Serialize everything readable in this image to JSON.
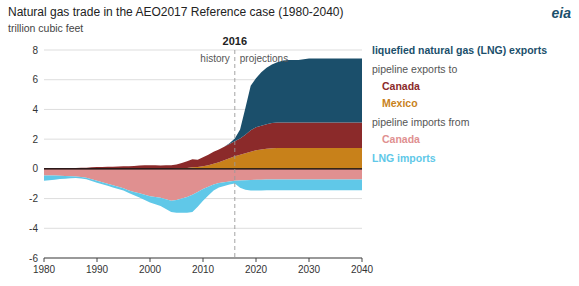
{
  "chart_data": {
    "type": "area",
    "stacked": true,
    "title": "Natural gas trade in the AEO2017 Reference case (1980-2040)",
    "y_label": "trillion cubic feet",
    "annotations": [
      "history",
      "projections",
      "pipeline exports to",
      "pipeline imports from",
      "eia"
    ],
    "divider": 2016,
    "xlim": [
      1980,
      2040
    ],
    "xticks": [
      1980,
      1990,
      2000,
      2010,
      2020,
      2030,
      2040
    ],
    "ylim": [
      -6,
      8
    ],
    "yticks": [
      -6,
      -4,
      -2,
      0,
      2,
      4,
      6,
      8
    ],
    "grid": true,
    "x": [
      1980,
      1981,
      1982,
      1983,
      1984,
      1985,
      1986,
      1987,
      1988,
      1989,
      1990,
      1991,
      1992,
      1993,
      1994,
      1995,
      1996,
      1997,
      1998,
      1999,
      2000,
      2001,
      2002,
      2003,
      2004,
      2005,
      2006,
      2007,
      2008,
      2009,
      2010,
      2011,
      2012,
      2013,
      2014,
      2015,
      2016,
      2017,
      2018,
      2019,
      2020,
      2021,
      2022,
      2023,
      2024,
      2025,
      2026,
      2027,
      2028,
      2029,
      2030,
      2031,
      2032,
      2033,
      2034,
      2035,
      2036,
      2037,
      2038,
      2039,
      2040
    ],
    "series": [
      {
        "name": "Mexico",
        "color": "#c8811a",
        "values": [
          0.0,
          0.0,
          0.0,
          0.0,
          0.0,
          0.0,
          0.0,
          0.0,
          0.0,
          0.0,
          0.0,
          0.0,
          0.0,
          0.0,
          0.0,
          0.0,
          0.0,
          0.0,
          0.0,
          0.0,
          0.0,
          0.0,
          0.0,
          0.0,
          0.0,
          0.02,
          0.04,
          0.06,
          0.1,
          0.12,
          0.18,
          0.25,
          0.35,
          0.45,
          0.58,
          0.72,
          0.85,
          0.95,
          1.05,
          1.15,
          1.25,
          1.3,
          1.35,
          1.38,
          1.4,
          1.4,
          1.4,
          1.4,
          1.4,
          1.4,
          1.4,
          1.4,
          1.4,
          1.4,
          1.4,
          1.4,
          1.4,
          1.4,
          1.4,
          1.4,
          1.4
        ]
      },
      {
        "name": "Canada",
        "color": "#8b2a2a",
        "values": [
          0.05,
          0.05,
          0.05,
          0.05,
          0.06,
          0.06,
          0.06,
          0.07,
          0.08,
          0.1,
          0.12,
          0.13,
          0.14,
          0.15,
          0.16,
          0.17,
          0.18,
          0.2,
          0.22,
          0.24,
          0.25,
          0.24,
          0.23,
          0.24,
          0.25,
          0.27,
          0.35,
          0.45,
          0.55,
          0.5,
          0.6,
          0.7,
          0.8,
          0.85,
          0.9,
          0.95,
          1.0,
          1.1,
          1.25,
          1.45,
          1.55,
          1.6,
          1.65,
          1.7,
          1.72,
          1.72,
          1.72,
          1.72,
          1.72,
          1.72,
          1.72,
          1.72,
          1.72,
          1.72,
          1.72,
          1.72,
          1.72,
          1.72,
          1.72,
          1.72,
          1.72
        ]
      },
      {
        "name": "liquefied natural gas (LNG) exports",
        "color": "#1b4f6b",
        "values": [
          0.0,
          0.0,
          0.0,
          0.0,
          0.0,
          0.0,
          0.0,
          0.0,
          0.0,
          0.0,
          0.0,
          0.0,
          0.0,
          0.0,
          0.0,
          0.0,
          0.0,
          0.0,
          0.0,
          0.0,
          0.0,
          0.0,
          0.0,
          0.0,
          0.0,
          0.0,
          0.0,
          0.0,
          0.0,
          0.0,
          0.0,
          0.0,
          0.0,
          0.0,
          0.0,
          0.05,
          0.2,
          0.6,
          1.8,
          3.0,
          3.3,
          3.6,
          3.8,
          3.95,
          4.05,
          4.15,
          4.2,
          4.2,
          4.2,
          4.25,
          4.3,
          4.3,
          4.3,
          4.3,
          4.3,
          4.3,
          4.3,
          4.3,
          4.3,
          4.3,
          4.3
        ]
      },
      {
        "name": "Canada",
        "color": "#e09090",
        "values": [
          -0.45,
          -0.45,
          -0.45,
          -0.46,
          -0.48,
          -0.5,
          -0.52,
          -0.55,
          -0.6,
          -0.7,
          -0.8,
          -0.9,
          -1.0,
          -1.1,
          -1.2,
          -1.3,
          -1.45,
          -1.55,
          -1.65,
          -1.75,
          -1.85,
          -1.9,
          -1.95,
          -2.05,
          -2.15,
          -2.1,
          -2.0,
          -1.9,
          -1.75,
          -1.55,
          -1.35,
          -1.2,
          -1.05,
          -0.95,
          -0.9,
          -0.85,
          -0.8,
          -0.78,
          -0.76,
          -0.75,
          -0.74,
          -0.73,
          -0.72,
          -0.72,
          -0.72,
          -0.72,
          -0.72,
          -0.72,
          -0.72,
          -0.72,
          -0.72,
          -0.72,
          -0.72,
          -0.72,
          -0.72,
          -0.72,
          -0.72,
          -0.72,
          -0.72,
          -0.72,
          -0.72
        ]
      },
      {
        "name": "LNG imports",
        "color": "#60c8e8",
        "values": [
          -0.35,
          -0.32,
          -0.28,
          -0.22,
          -0.18,
          -0.14,
          -0.1,
          -0.1,
          -0.1,
          -0.12,
          -0.14,
          -0.14,
          -0.14,
          -0.15,
          -0.15,
          -0.15,
          -0.18,
          -0.22,
          -0.28,
          -0.35,
          -0.42,
          -0.48,
          -0.55,
          -0.65,
          -0.75,
          -0.85,
          -0.95,
          -1.05,
          -1.15,
          -1.0,
          -0.8,
          -0.6,
          -0.4,
          -0.3,
          -0.25,
          -0.2,
          -0.18,
          -0.5,
          -0.65,
          -0.7,
          -0.72,
          -0.72,
          -0.72,
          -0.72,
          -0.72,
          -0.72,
          -0.72,
          -0.72,
          -0.72,
          -0.72,
          -0.72,
          -0.72,
          -0.72,
          -0.72,
          -0.72,
          -0.72,
          -0.72,
          -0.72,
          -0.72,
          -0.72,
          -0.72
        ]
      }
    ]
  }
}
